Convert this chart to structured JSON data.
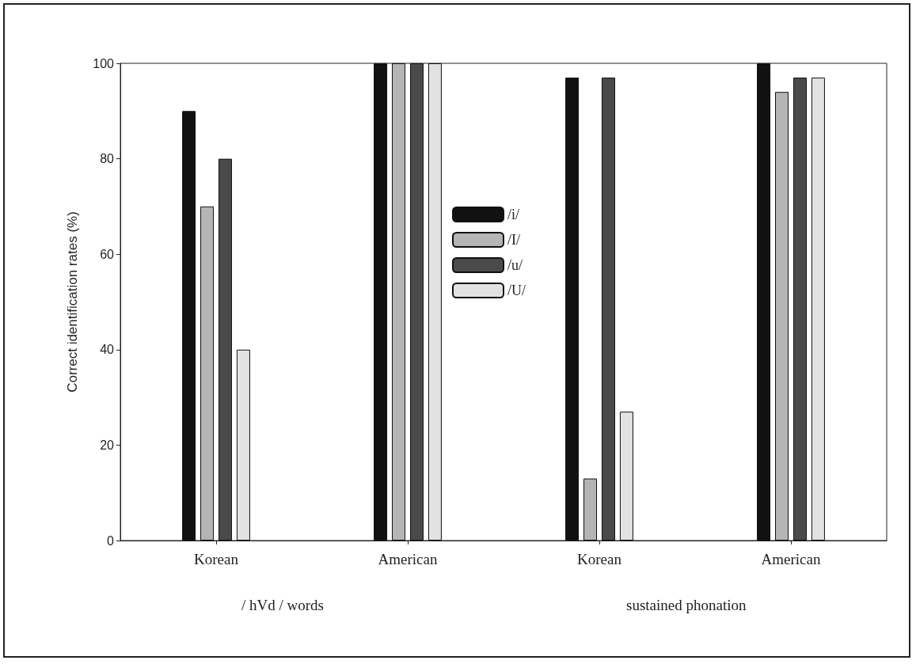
{
  "chart_data": {
    "type": "bar",
    "ylabel": "Correct identification rates (%)",
    "categories": [
      "Korean",
      "American",
      "Korean",
      "American"
    ],
    "series": [
      {
        "name": "/i/",
        "color": "#111111",
        "values": [
          90,
          100,
          97,
          100
        ]
      },
      {
        "name": "/I/",
        "color": "#b5b5b5",
        "values": [
          70,
          100,
          13,
          94
        ]
      },
      {
        "name": "/u/",
        "color": "#4a4a4a",
        "values": [
          80,
          100,
          97,
          97
        ]
      },
      {
        "name": "/U/",
        "color": "#e2e2e2",
        "values": [
          40,
          100,
          27,
          97
        ]
      }
    ],
    "ylim": [
      0,
      100
    ],
    "yticks": [
      0,
      20,
      40,
      60,
      80,
      100
    ],
    "grid": false,
    "legend": "top",
    "annotations": [
      "/ hVd / words",
      "sustained phonation"
    ]
  }
}
